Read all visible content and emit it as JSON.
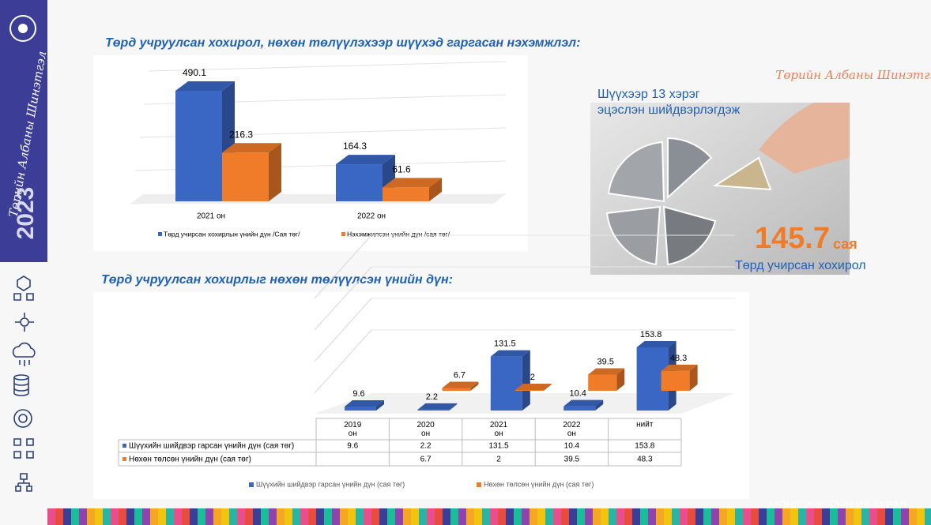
{
  "sidebar": {
    "year": "2023",
    "logo": "Төрийн Албаны Шинэтгэл"
  },
  "brand": "Төрийн Албаны Шинэтгэл",
  "callout": {
    "text": "Шүүхээр 13 хэрэг эцэслэн шийдвэрлэгдэж",
    "amount": "145.7",
    "unit": "сая",
    "caption": "Төрд учирсан хохирол"
  },
  "footer": "МОНГОЛ УЛСЫН ИХ ХУРАЛ",
  "chart_data": [
    {
      "type": "bar3d",
      "title": "Төрд учруулсан хохирол, нөхөн төлүүлэхээр шүүхэд гаргасан нэхэмжлэл:",
      "categories": [
        "2021 он",
        "2022 он"
      ],
      "series": [
        {
          "name": "Төрд учирсан хохирлын үнийн дүн /Сая төг/",
          "color": "#3a66c4",
          "values": [
            490.1,
            164.3
          ]
        },
        {
          "name": "Нэхэмжилсэн үнийн дүн /сая төг/",
          "color": "#f07b29",
          "values": [
            216.3,
            61.6
          ]
        }
      ]
    },
    {
      "type": "bar3d-table",
      "title": "Төрд учруулсан хохирлыг нөхөн төлүүлсэн үнийн дүн:",
      "categories": [
        "2019 он",
        "2020 он",
        "2021 он",
        "2022 он",
        "нийт"
      ],
      "series": [
        {
          "name": "Шүүхийн шийдвэр гарсан үнийн дүн (сая төг)",
          "color": "#3a66c4",
          "values": [
            9.6,
            2.2,
            131.5,
            10.4,
            153.8
          ]
        },
        {
          "name": "Нөхөн төлсөн үнийн дүн (сая төг)",
          "color": "#f07b29",
          "values": [
            null,
            6.7,
            2,
            39.5,
            48.3
          ]
        }
      ]
    }
  ]
}
